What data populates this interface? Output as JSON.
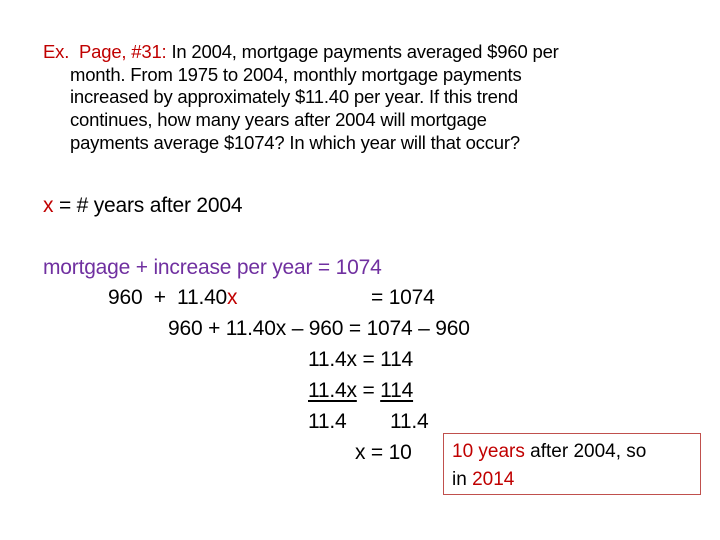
{
  "problem": {
    "label": "Ex.  Page, #31:",
    "lines": [
      " In 2004, mortgage payments averaged $960 per",
      "month.  From 1975 to 2004, monthly mortgage payments",
      "increased by approximately $11.40 per year.  If this trend",
      "continues, how many years after 2004 will mortgage",
      "payments average $1074?  In which year will that occur?"
    ]
  },
  "definition": {
    "var": "x",
    "rest": " = # years after 2004"
  },
  "solution": {
    "word_equation": "mortgage  +  increase per year = 1074",
    "step1_a": "960  +  11.40",
    "step1_x": "x",
    "step1_b": "= 1074",
    "step2": "960 + 11.40x – 960 = 1074 – 960",
    "step3": "11.4x = 114",
    "step4_left": "11.4x",
    "step4_eq": " = ",
    "step4_right": "114",
    "step5_left": "11.4",
    "step5_right": "11.4",
    "result": "x = 10"
  },
  "answer": {
    "highlight1": "10 years",
    "text1": " after 2004, so",
    "text2": "in ",
    "highlight2": "2014"
  },
  "colors": {
    "red": "#c00000",
    "purple": "#7030a0",
    "box_border": "#c0504d"
  }
}
